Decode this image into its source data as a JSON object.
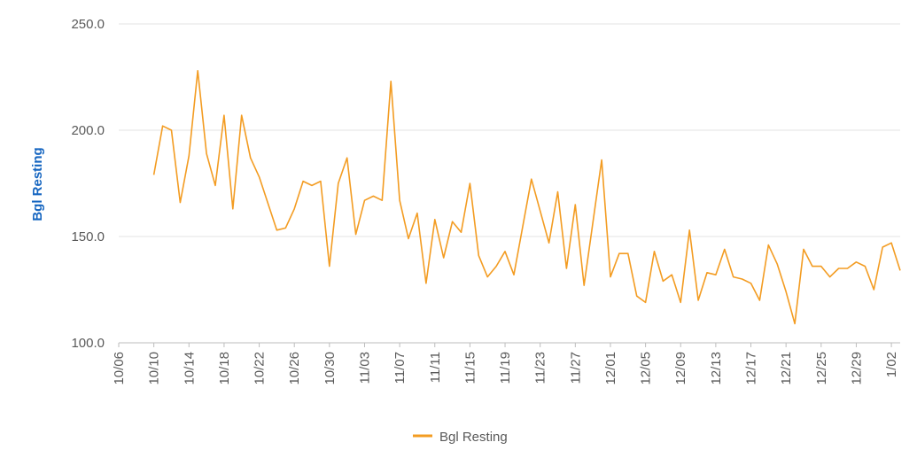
{
  "chart_data": {
    "type": "line",
    "ylabel": "Bgl Resting",
    "ylim": [
      100,
      250
    ],
    "y_ticks": [
      "100.0",
      "150.0",
      "200.0",
      "250.0"
    ],
    "y_tick_values": [
      100,
      150,
      200,
      250
    ],
    "x_tick_labels": [
      "10/06",
      "10/10",
      "10/14",
      "10/18",
      "10/22",
      "10/26",
      "10/30",
      "11/03",
      "11/07",
      "11/11",
      "11/15",
      "11/19",
      "11/23",
      "11/27",
      "12/01",
      "12/05",
      "12/09",
      "12/13",
      "12/17",
      "12/21",
      "12/25",
      "12/29",
      "1/02"
    ],
    "x_range": [
      "10/06",
      "1/03"
    ],
    "grid": "horizontal",
    "legend_position": "bottom",
    "series": [
      {
        "name": "Bgl Resting",
        "color": "#F39C22",
        "x": [
          "10/10",
          "10/11",
          "10/12",
          "10/13",
          "10/14",
          "10/15",
          "10/16",
          "10/17",
          "10/18",
          "10/19",
          "10/20",
          "10/21",
          "10/22",
          "10/24",
          "10/25",
          "10/26",
          "10/27",
          "10/28",
          "10/29",
          "10/30",
          "10/31",
          "11/01",
          "11/02",
          "11/03",
          "11/04",
          "11/05",
          "11/06",
          "11/07",
          "11/08",
          "11/09",
          "11/10",
          "11/11",
          "11/12",
          "11/13",
          "11/14",
          "11/15",
          "11/16",
          "11/17",
          "11/18",
          "11/19",
          "11/20",
          "11/22",
          "11/24",
          "11/25",
          "11/26",
          "11/27",
          "11/28",
          "11/30",
          "12/01",
          "12/02",
          "12/03",
          "12/04",
          "12/05",
          "12/06",
          "12/07",
          "12/08",
          "12/09",
          "12/10",
          "12/11",
          "12/12",
          "12/13",
          "12/14",
          "12/15",
          "12/16",
          "12/17",
          "12/18",
          "12/19",
          "12/20",
          "12/21",
          "12/22",
          "12/23",
          "12/24",
          "12/25",
          "12/26",
          "12/27",
          "12/28",
          "12/29",
          "12/30",
          "12/31",
          "1/01",
          "1/02",
          "1/03"
        ],
        "values": [
          179,
          202,
          200,
          166,
          188,
          228,
          189,
          174,
          207,
          163,
          207,
          187,
          178,
          153,
          154,
          163,
          176,
          174,
          176,
          136,
          175,
          187,
          151,
          167,
          169,
          167,
          223,
          167,
          149,
          161,
          128,
          158,
          140,
          157,
          152,
          175,
          141,
          131,
          136,
          143,
          132,
          177,
          147,
          171,
          135,
          165,
          127,
          186,
          131,
          142,
          142,
          122,
          119,
          143,
          129,
          132,
          119,
          153,
          120,
          133,
          132,
          144,
          131,
          130,
          128,
          120,
          146,
          137,
          124,
          109,
          144,
          136,
          136,
          131,
          135,
          135,
          138,
          136,
          125,
          145,
          147,
          134
        ]
      }
    ]
  },
  "legend": {
    "label": "Bgl Resting"
  }
}
